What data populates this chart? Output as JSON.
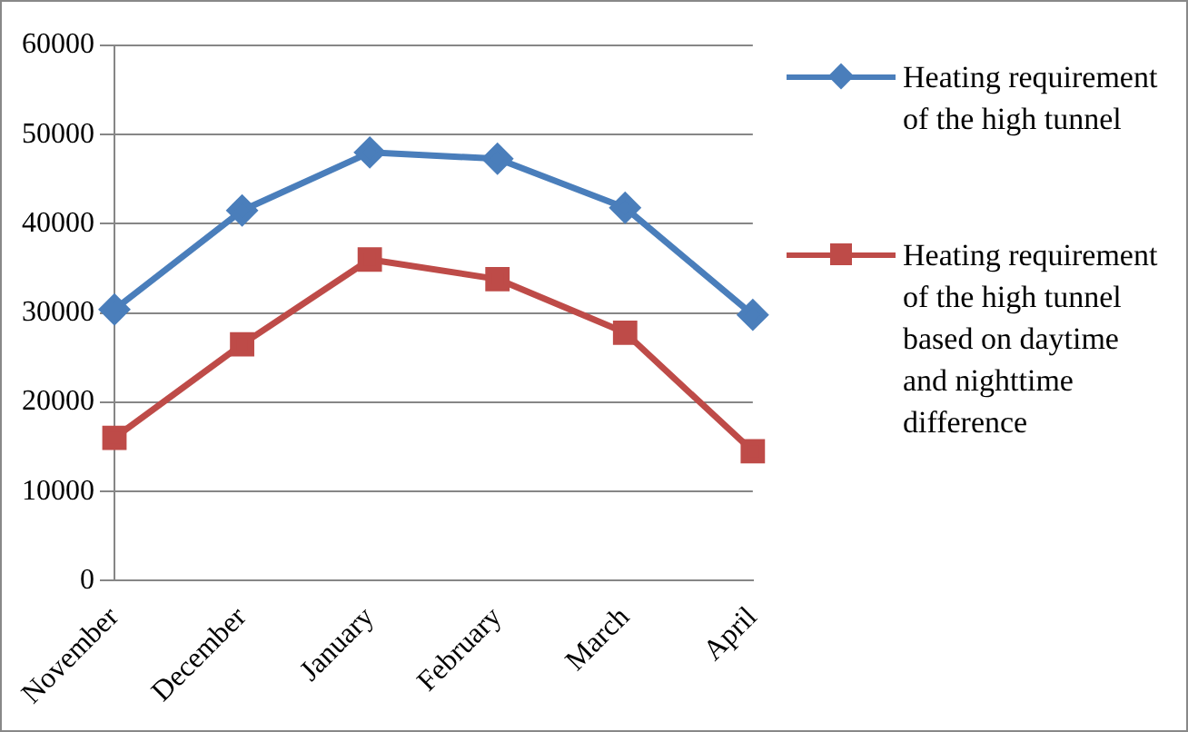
{
  "chart_data": {
    "type": "line",
    "categories": [
      "November",
      "December",
      "January",
      "February",
      "March",
      "April"
    ],
    "series": [
      {
        "name": "Heating requirement of the high tunnel",
        "color": "#4a7ebb",
        "marker": "diamond",
        "values": [
          30400,
          41500,
          48000,
          47300,
          41800,
          29800
        ]
      },
      {
        "name": "Heating requirement of the high tunnel based on daytime and nighttime difference",
        "color": "#be4b48",
        "marker": "square",
        "values": [
          16000,
          26500,
          36000,
          33800,
          27800,
          14500
        ]
      }
    ],
    "ylim": [
      0,
      60000
    ],
    "yticks": [
      0,
      10000,
      20000,
      30000,
      40000,
      50000,
      60000
    ],
    "grid": "y",
    "legend": "right"
  }
}
